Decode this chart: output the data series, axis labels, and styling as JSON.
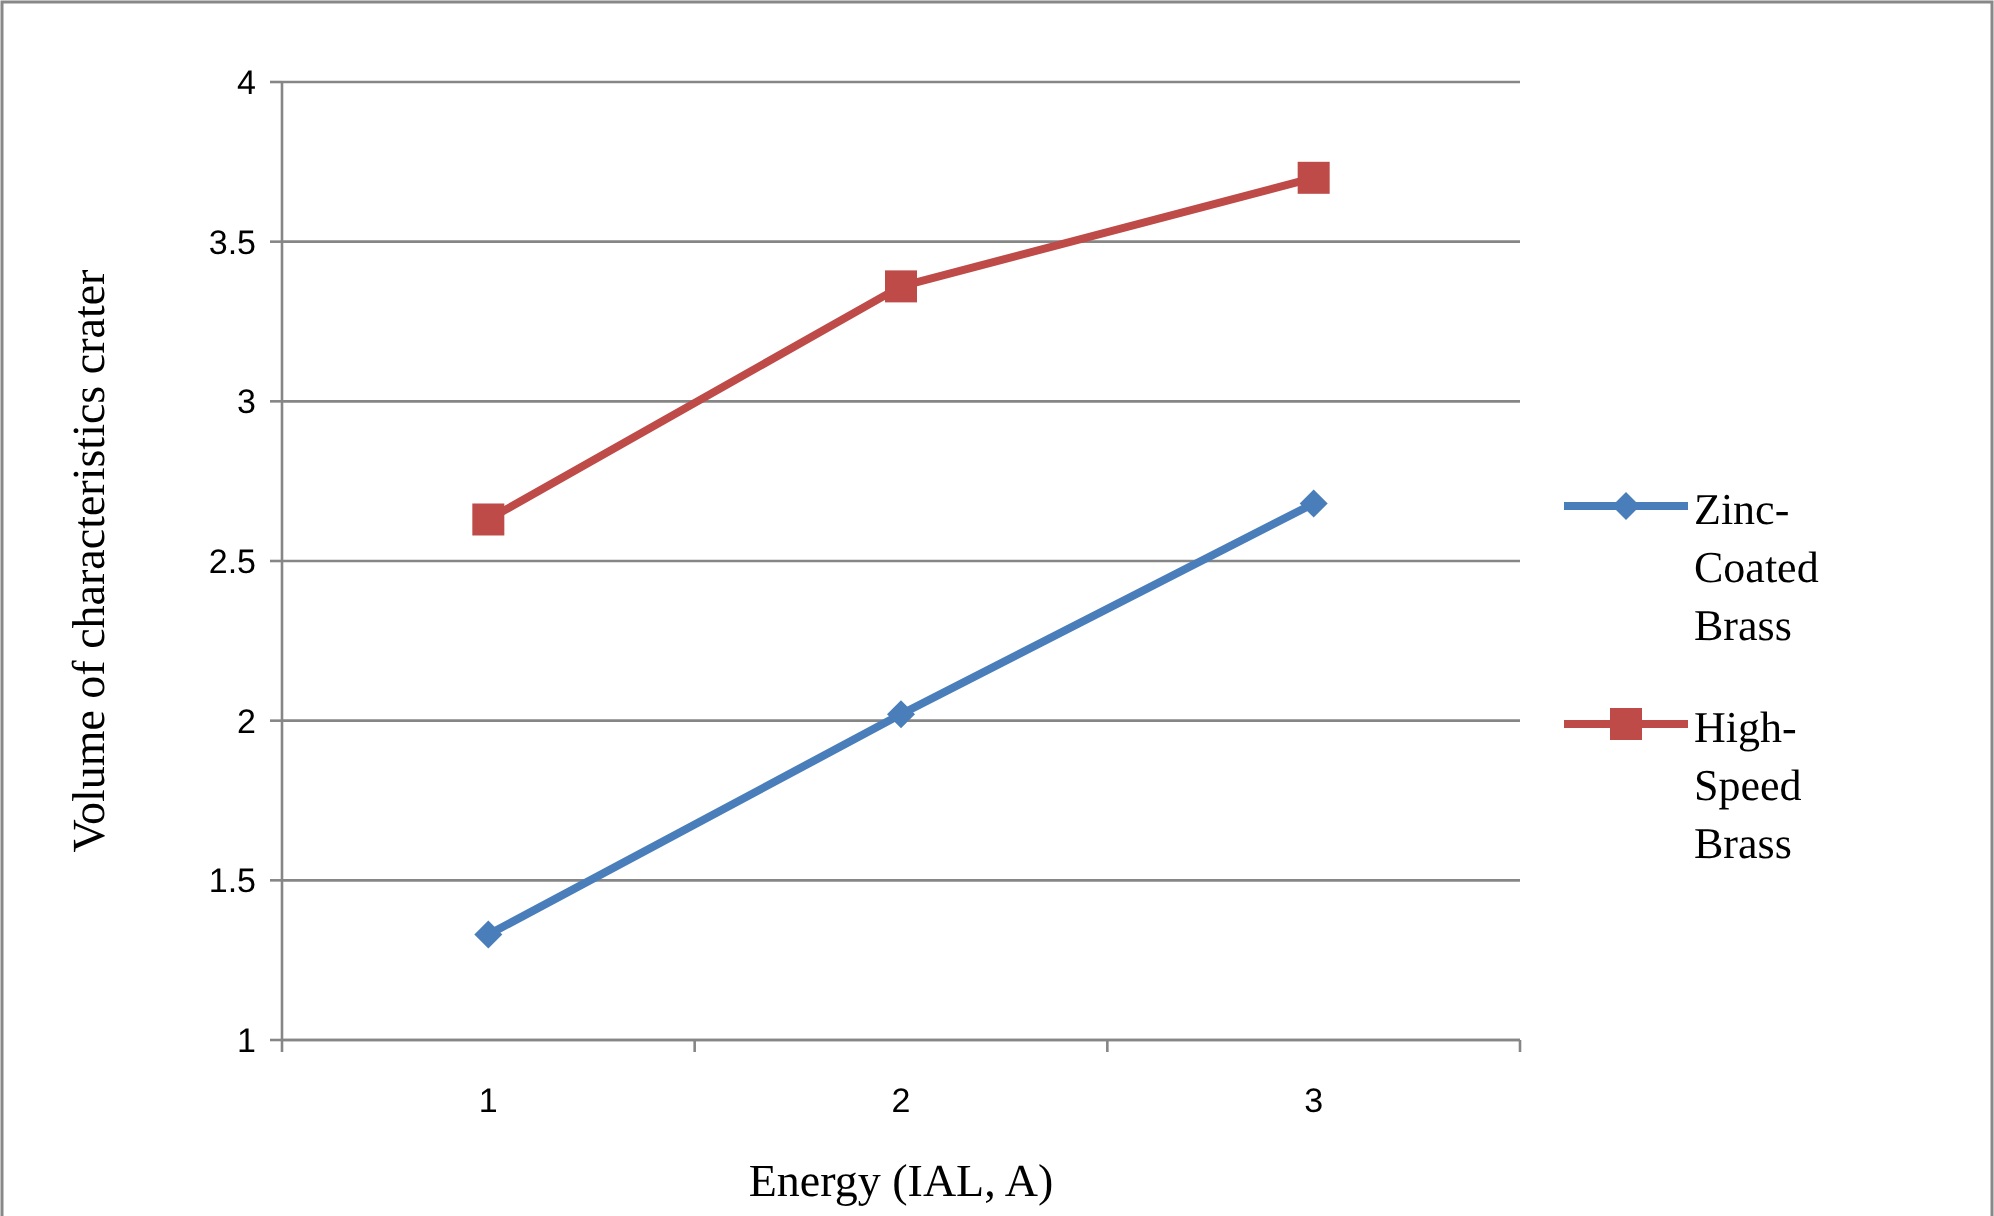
{
  "chart_data": {
    "type": "line",
    "xlabel": "Energy (IAL, A)",
    "ylabel": "Volume of characteristics crater",
    "categories": [
      "1",
      "2",
      "3"
    ],
    "series": [
      {
        "name": "Zinc-Coated Brass",
        "color": "#4a7ebb",
        "marker": "diamond",
        "values": [
          1.33,
          2.02,
          2.68
        ]
      },
      {
        "name": "High-Speed Brass",
        "color": "#be4b48",
        "marker": "square",
        "values": [
          2.63,
          3.36,
          3.7
        ]
      }
    ],
    "ylim": [
      1,
      4
    ],
    "yticks": [
      1,
      1.5,
      2,
      2.5,
      3,
      3.5,
      4
    ],
    "grid": "y",
    "legend": "right",
    "line_style": "solid"
  }
}
